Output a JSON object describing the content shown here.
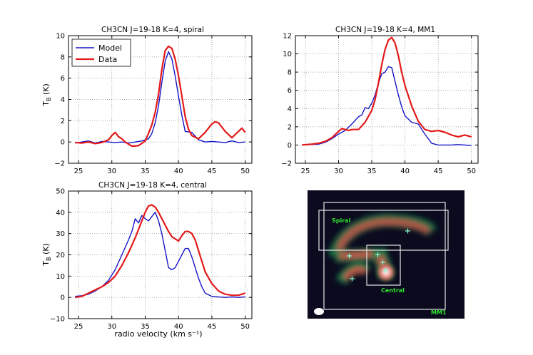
{
  "figure": {
    "xlabel": "radio velocity (km s⁻¹)",
    "ylabel_main": "T",
    "ylabel_sub": "B",
    "ylabel_unit": " (K)"
  },
  "colors": {
    "model": "#1515c8",
    "data": "#e41a1a",
    "grid": "#888888"
  },
  "chart_data": [
    {
      "type": "line",
      "title": "CH3CN J=19-18 K=4, spiral",
      "xlim": [
        23.5,
        51
      ],
      "ylim": [
        -2,
        10
      ],
      "xticks": [
        25,
        30,
        35,
        40,
        45,
        50
      ],
      "yticks": [
        -2,
        0,
        2,
        4,
        6,
        8,
        10
      ],
      "legend": {
        "position": "top-left",
        "entries": [
          "Model",
          "Data"
        ]
      },
      "series": [
        {
          "name": "Model",
          "color": "#1515c8",
          "x": [
            24.5,
            25.5,
            26.5,
            27.5,
            28.5,
            29.5,
            30.5,
            31.5,
            32.5,
            33.5,
            34.5,
            35.5,
            36.0,
            36.5,
            37.0,
            37.5,
            38.0,
            38.5,
            39.0,
            39.5,
            40.0,
            40.5,
            41.0,
            42.0,
            43.0,
            44.0,
            45.0,
            46.0,
            47.0,
            48.0,
            49.0,
            50.0
          ],
          "y": [
            -0.1,
            0.0,
            0.1,
            -0.1,
            0.05,
            0.0,
            -0.05,
            0.0,
            -0.1,
            0.0,
            0.1,
            0.3,
            0.8,
            1.8,
            3.4,
            5.6,
            7.6,
            8.5,
            7.8,
            6.2,
            4.3,
            2.5,
            1.0,
            0.9,
            0.2,
            0.0,
            0.05,
            0.0,
            -0.05,
            0.1,
            -0.05,
            0.0
          ]
        },
        {
          "name": "Data",
          "color": "#e41a1a",
          "x": [
            24.5,
            25.5,
            26.5,
            27.5,
            28.5,
            29.5,
            30.0,
            30.5,
            31.0,
            31.5,
            32.0,
            33.0,
            34.0,
            35.0,
            35.5,
            36.0,
            36.5,
            37.0,
            37.5,
            38.0,
            38.5,
            39.0,
            39.5,
            40.0,
            40.5,
            41.0,
            41.5,
            42.0,
            43.0,
            44.0,
            45.0,
            45.5,
            46.0,
            47.0,
            48.0,
            49.0,
            49.5,
            50.0
          ],
          "y": [
            -0.05,
            -0.1,
            0.0,
            -0.15,
            -0.05,
            0.2,
            0.6,
            0.9,
            0.5,
            0.3,
            0.0,
            -0.4,
            -0.35,
            0.1,
            0.8,
            1.6,
            2.8,
            4.5,
            6.8,
            8.6,
            9.0,
            8.8,
            7.8,
            6.2,
            4.3,
            2.4,
            1.2,
            0.6,
            0.3,
            0.9,
            1.7,
            1.9,
            1.8,
            1.0,
            0.4,
            1.0,
            1.3,
            0.9
          ]
        }
      ]
    },
    {
      "type": "line",
      "title": "CH3CN J=19-18 K=4, MM1",
      "xlim": [
        23.5,
        51
      ],
      "ylim": [
        -2,
        12
      ],
      "xticks": [
        25,
        30,
        35,
        40,
        45,
        50
      ],
      "yticks": [
        -2,
        0,
        2,
        4,
        6,
        8,
        10,
        12
      ],
      "series": [
        {
          "name": "Model",
          "color": "#1515c8",
          "x": [
            24.5,
            26,
            27,
            28,
            29,
            30,
            31,
            32,
            33,
            33.5,
            34,
            34.5,
            35,
            35.5,
            36,
            36.5,
            37,
            37.5,
            38,
            38.5,
            39,
            39.5,
            40,
            41,
            42,
            43,
            44,
            45,
            46,
            47,
            48,
            49,
            50
          ],
          "y": [
            0.0,
            0.05,
            0.1,
            0.3,
            0.7,
            1.2,
            1.6,
            2.3,
            3.1,
            3.3,
            4.1,
            4.0,
            4.6,
            5.5,
            6.8,
            7.8,
            8.0,
            8.6,
            8.5,
            7.0,
            5.5,
            4.2,
            3.2,
            2.5,
            2.3,
            1.2,
            0.2,
            0.0,
            0.0,
            0.0,
            0.05,
            0.0,
            -0.05
          ]
        },
        {
          "name": "Data",
          "color": "#e41a1a",
          "x": [
            24.5,
            26,
            27,
            28,
            29,
            30,
            30.5,
            31,
            31.5,
            32,
            32.5,
            33,
            34,
            35,
            35.5,
            36,
            36.5,
            37,
            37.5,
            38,
            38.5,
            39,
            39.5,
            40,
            41,
            42,
            43,
            44,
            45,
            46,
            47,
            48,
            49,
            50
          ],
          "y": [
            0.0,
            0.1,
            0.2,
            0.4,
            0.8,
            1.5,
            1.8,
            1.7,
            1.6,
            1.7,
            1.7,
            1.7,
            2.5,
            3.8,
            5.0,
            6.8,
            8.8,
            10.5,
            11.5,
            11.8,
            11.2,
            9.8,
            8.0,
            6.5,
            4.3,
            2.6,
            1.7,
            1.5,
            1.6,
            1.4,
            1.1,
            0.9,
            1.1,
            0.9
          ]
        }
      ]
    },
    {
      "type": "line",
      "title": "CH3CN J=19-18 K=4, central",
      "xlim": [
        23.5,
        51
      ],
      "ylim": [
        -10,
        50
      ],
      "xticks": [
        25,
        30,
        35,
        40,
        45,
        50
      ],
      "yticks": [
        -10,
        0,
        10,
        20,
        30,
        40,
        50
      ],
      "series": [
        {
          "name": "Model",
          "color": "#1515c8",
          "x": [
            24.5,
            25.5,
            26.5,
            27.5,
            28.5,
            29.5,
            30.5,
            31.5,
            32.5,
            33.0,
            33.5,
            34.0,
            34.5,
            35.0,
            35.5,
            36.0,
            36.5,
            37.0,
            37.5,
            38.0,
            38.5,
            39.0,
            39.5,
            40.0,
            40.5,
            41.0,
            41.5,
            42.0,
            42.5,
            43.0,
            43.5,
            44.0,
            45.0,
            46.0,
            47.0,
            48.0,
            49.0,
            50.0
          ],
          "y": [
            0.5,
            0.8,
            1.5,
            3.0,
            5.0,
            8.0,
            13.0,
            20.0,
            27.0,
            31.0,
            37.0,
            35.0,
            38.5,
            37.0,
            36.0,
            38.0,
            40.0,
            36.0,
            30.0,
            22.0,
            14.0,
            13.0,
            14.0,
            17.0,
            20.0,
            23.0,
            23.0,
            19.0,
            14.0,
            9.0,
            5.0,
            2.0,
            0.5,
            0.2,
            0.0,
            0.2,
            0.0,
            0.2
          ]
        },
        {
          "name": "Data",
          "color": "#e41a1a",
          "x": [
            24.5,
            25.5,
            26.5,
            27.5,
            28.5,
            29.5,
            30.5,
            31.5,
            32.5,
            33.5,
            34.5,
            35.0,
            35.5,
            36.0,
            36.5,
            37.0,
            37.5,
            38.0,
            38.5,
            39.0,
            39.5,
            40.0,
            40.5,
            41.0,
            41.5,
            42.0,
            42.5,
            43.0,
            43.5,
            44.0,
            45.0,
            46.0,
            47.0,
            48.0,
            49.0,
            50.0
          ],
          "y": [
            0.0,
            0.5,
            2.0,
            3.5,
            5.0,
            7.0,
            10.0,
            15.0,
            21.0,
            28.0,
            36.0,
            40.0,
            43.0,
            43.5,
            42.5,
            40.0,
            37.0,
            34.0,
            31.0,
            28.5,
            27.5,
            26.5,
            29.0,
            31.0,
            31.0,
            30.0,
            27.0,
            22.0,
            17.0,
            12.0,
            6.5,
            3.0,
            1.5,
            1.0,
            1.0,
            2.0
          ]
        }
      ]
    }
  ],
  "map": {
    "labels": {
      "spiral": "Spiral",
      "central": "Central",
      "mm1": "MM1"
    },
    "label_color": "#2ee62e",
    "background": "#0b0a1e"
  }
}
